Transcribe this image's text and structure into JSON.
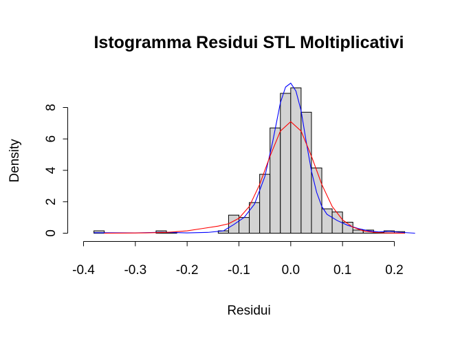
{
  "chart_data": {
    "type": "histogram",
    "title": "Istogramma Residui STL Moltiplicativi",
    "xlabel": "Residui",
    "ylabel": "Density",
    "xlim": [
      -0.4,
      0.22
    ],
    "ylim": [
      0,
      9.5
    ],
    "x_ticks": [
      -0.4,
      -0.3,
      -0.2,
      -0.1,
      0.0,
      0.1,
      0.2
    ],
    "x_tick_labels": [
      "-0.4",
      "-0.3",
      "-0.2",
      "-0.1",
      "0.0",
      "0.1",
      "0.2"
    ],
    "y_ticks": [
      0,
      2,
      4,
      6,
      8
    ],
    "y_tick_labels": [
      "0",
      "2",
      "4",
      "6",
      "8"
    ],
    "bin_width": 0.02,
    "bins": [
      {
        "start": -0.38,
        "end": -0.36,
        "density": 0.15
      },
      {
        "start": -0.26,
        "end": -0.24,
        "density": 0.15
      },
      {
        "start": -0.24,
        "end": -0.22,
        "density": 0.05
      },
      {
        "start": -0.14,
        "end": -0.12,
        "density": 0.15
      },
      {
        "start": -0.12,
        "end": -0.1,
        "density": 1.15
      },
      {
        "start": -0.1,
        "end": -0.08,
        "density": 1.0
      },
      {
        "start": -0.08,
        "end": -0.06,
        "density": 1.95
      },
      {
        "start": -0.06,
        "end": -0.04,
        "density": 3.75
      },
      {
        "start": -0.04,
        "end": -0.02,
        "density": 6.7
      },
      {
        "start": -0.02,
        "end": 0.0,
        "density": 8.9
      },
      {
        "start": 0.0,
        "end": 0.02,
        "density": 9.25
      },
      {
        "start": 0.02,
        "end": 0.04,
        "density": 7.7
      },
      {
        "start": 0.04,
        "end": 0.06,
        "density": 4.15
      },
      {
        "start": 0.06,
        "end": 0.08,
        "density": 1.55
      },
      {
        "start": 0.08,
        "end": 0.1,
        "density": 1.35
      },
      {
        "start": 0.1,
        "end": 0.12,
        "density": 0.7
      },
      {
        "start": 0.12,
        "end": 0.14,
        "density": 0.2
      },
      {
        "start": 0.14,
        "end": 0.16,
        "density": 0.2
      },
      {
        "start": 0.16,
        "end": 0.18,
        "density": 0.05
      },
      {
        "start": 0.18,
        "end": 0.2,
        "density": 0.15
      },
      {
        "start": 0.2,
        "end": 0.22,
        "density": 0.1
      }
    ],
    "curves": [
      {
        "color": "#0000ff",
        "x": [
          -0.38,
          -0.3,
          -0.25,
          -0.2,
          -0.16,
          -0.13,
          -0.11,
          -0.09,
          -0.07,
          -0.05,
          -0.035,
          -0.02,
          -0.01,
          0.0,
          0.01,
          0.02,
          0.03,
          0.04,
          0.05,
          0.06,
          0.07,
          0.09,
          0.11,
          0.13,
          0.15,
          0.17,
          0.19,
          0.21,
          0.24
        ],
        "y": [
          0.03,
          0.02,
          0.06,
          0.02,
          0.05,
          0.15,
          0.55,
          1.0,
          1.85,
          3.6,
          5.8,
          8.3,
          9.3,
          9.55,
          9.05,
          7.8,
          5.8,
          3.95,
          2.6,
          1.7,
          1.2,
          0.8,
          0.5,
          0.3,
          0.15,
          0.08,
          0.12,
          0.06,
          0.0
        ]
      },
      {
        "color": "#ff0000",
        "x": [
          -0.36,
          -0.32,
          -0.28,
          -0.24,
          -0.2,
          -0.17,
          -0.14,
          -0.12,
          -0.1,
          -0.08,
          -0.06,
          -0.04,
          -0.02,
          0.0,
          0.02,
          0.04,
          0.06,
          0.08,
          0.1,
          0.12,
          0.14,
          0.16,
          0.18,
          0.2,
          0.22
        ],
        "y": [
          0.0,
          0.01,
          0.02,
          0.05,
          0.15,
          0.3,
          0.45,
          0.6,
          0.95,
          1.7,
          3.1,
          4.9,
          6.5,
          7.1,
          6.5,
          4.9,
          3.1,
          1.7,
          0.85,
          0.38,
          0.15,
          0.05,
          0.02,
          0.01,
          0.0
        ]
      }
    ],
    "bar_fill": "#d3d3d3",
    "bar_stroke": "#000000",
    "grid": false,
    "legend": "none"
  }
}
